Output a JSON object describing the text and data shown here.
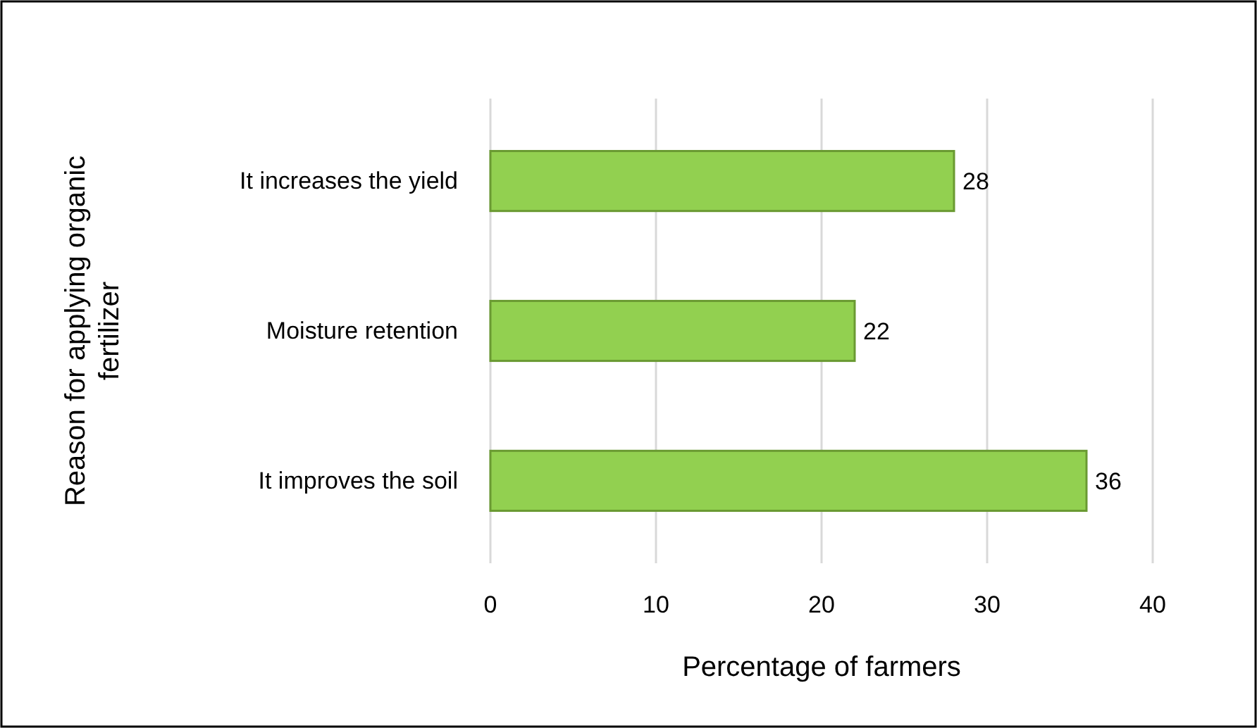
{
  "chart_data": {
    "type": "bar",
    "orientation": "horizontal",
    "categories": [
      "It increases the yield",
      "Moisture retention",
      "It improves the soil"
    ],
    "values": [
      28,
      22,
      36
    ],
    "color": "#92d050",
    "xlim": [
      0,
      40
    ],
    "xticks": [
      0,
      10,
      20,
      30,
      40
    ],
    "grid": "x",
    "data_labels": true,
    "xlabel": "Percentage of farmers",
    "ylabel": "Reason for applying organic fertilizer"
  }
}
